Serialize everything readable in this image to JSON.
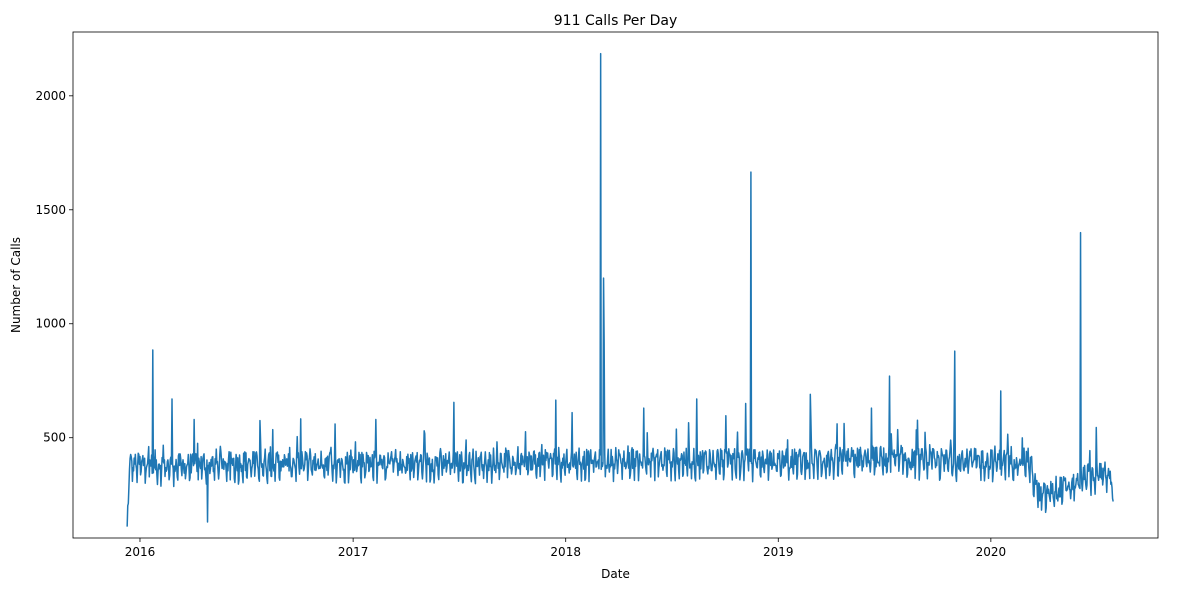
{
  "chart_data": {
    "type": "line",
    "title": "911 Calls Per Day",
    "xlabel": "Date",
    "ylabel": "Number of Calls",
    "x_range": [
      "2015-09-08",
      "2020-10-14"
    ],
    "ylim": [
      60,
      2280
    ],
    "x_ticks": [
      {
        "date": "2016-01-01",
        "label": "2016"
      },
      {
        "date": "2017-01-01",
        "label": "2017"
      },
      {
        "date": "2018-01-01",
        "label": "2018"
      },
      {
        "date": "2019-01-01",
        "label": "2019"
      },
      {
        "date": "2020-01-01",
        "label": "2020"
      }
    ],
    "y_ticks": [
      500,
      1000,
      1500,
      2000
    ],
    "grid": false,
    "legend": "none",
    "line_color": "#1f77b4",
    "series": [
      {
        "x_start": "2015-12-10",
        "x_end": "2020-07-29",
        "baseline_points": [
          {
            "x": "2015-12-10",
            "y": 110
          },
          {
            "x": "2015-12-14",
            "y": 380
          },
          {
            "x": "2016-03-01",
            "y": 375
          },
          {
            "x": "2016-06-01",
            "y": 385
          },
          {
            "x": "2017-01-01",
            "y": 390
          },
          {
            "x": "2017-06-01",
            "y": 385
          },
          {
            "x": "2018-01-01",
            "y": 395
          },
          {
            "x": "2018-06-01",
            "y": 400
          },
          {
            "x": "2019-01-01",
            "y": 395
          },
          {
            "x": "2019-06-01",
            "y": 405
          },
          {
            "x": "2020-01-01",
            "y": 395
          },
          {
            "x": "2020-03-05",
            "y": 400
          },
          {
            "x": "2020-03-25",
            "y": 240
          },
          {
            "x": "2020-04-15",
            "y": 260
          },
          {
            "x": "2020-05-20",
            "y": 290
          },
          {
            "x": "2020-06-15",
            "y": 330
          },
          {
            "x": "2020-07-25",
            "y": 345
          },
          {
            "x": "2020-07-29",
            "y": 220
          }
        ],
        "spikes": [
          {
            "x": "2016-01-23",
            "y": 885
          },
          {
            "x": "2016-02-25",
            "y": 670
          },
          {
            "x": "2016-04-03",
            "y": 580
          },
          {
            "x": "2016-04-26",
            "y": 130
          },
          {
            "x": "2016-07-25",
            "y": 575
          },
          {
            "x": "2016-12-01",
            "y": 560
          },
          {
            "x": "2017-02-09",
            "y": 580
          },
          {
            "x": "2017-06-23",
            "y": 655
          },
          {
            "x": "2017-12-15",
            "y": 665
          },
          {
            "x": "2018-01-12",
            "y": 610
          },
          {
            "x": "2018-03-02",
            "y": 2185
          },
          {
            "x": "2018-03-07",
            "y": 1200
          },
          {
            "x": "2018-03-08",
            "y": 920
          },
          {
            "x": "2018-05-15",
            "y": 630
          },
          {
            "x": "2018-08-14",
            "y": 670
          },
          {
            "x": "2018-11-06",
            "y": 650
          },
          {
            "x": "2018-11-15",
            "y": 1665
          },
          {
            "x": "2019-02-25",
            "y": 690
          },
          {
            "x": "2019-06-10",
            "y": 630
          },
          {
            "x": "2019-07-11",
            "y": 770
          },
          {
            "x": "2019-10-31",
            "y": 880
          },
          {
            "x": "2020-01-18",
            "y": 705
          },
          {
            "x": "2020-06-03",
            "y": 1400
          },
          {
            "x": "2020-06-30",
            "y": 545
          }
        ]
      }
    ]
  }
}
